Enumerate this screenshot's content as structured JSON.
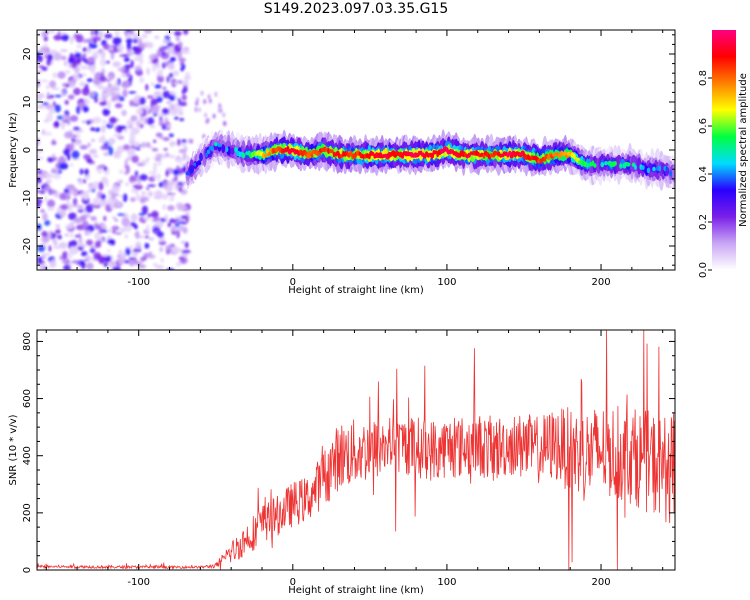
{
  "title": "S149.2023.097.03.35.G15",
  "chart_data": [
    {
      "type": "heatmap",
      "xlabel": "Height of straight line (km)",
      "ylabel": "Frequency (Hz)",
      "xlim": [
        -166,
        248
      ],
      "ylim": [
        -25,
        25
      ],
      "x_ticks": [
        -100,
        0,
        100,
        200
      ],
      "y_ticks": [
        -20,
        -10,
        0,
        10,
        20
      ],
      "colorbar": {
        "label": "Normalized spectral amplitude",
        "range": [
          0,
          1
        ],
        "ticks": [
          0.0,
          0.2,
          0.4,
          0.6,
          0.8
        ],
        "colors": [
          "#ffffff",
          "#c9a6f5",
          "#7a1fe8",
          "#2a00ff",
          "#00ddff",
          "#00ff40",
          "#ffff00",
          "#ff8000",
          "#ff0000",
          "#ff0080"
        ]
      },
      "noise_region_x": [
        -166,
        -68
      ],
      "ridge": {
        "x": [
          -68,
          -60,
          -50,
          -40,
          -30,
          -20,
          -10,
          0,
          10,
          20,
          30,
          40,
          50,
          60,
          70,
          80,
          90,
          100,
          110,
          120,
          130,
          140,
          150,
          160,
          170,
          180,
          190,
          200,
          210,
          220,
          230,
          240,
          248
        ],
        "freq": [
          -5,
          -2,
          1,
          0,
          -1,
          -1,
          0,
          0,
          -1,
          0,
          -1,
          -1,
          -1,
          -1,
          -1,
          -1,
          -1,
          0,
          -1,
          -1,
          -1,
          -1,
          -1,
          -2,
          -1,
          -1,
          -3,
          -3,
          -3,
          -3,
          -4,
          -4,
          -5
        ],
        "amplitude": [
          0.4,
          0.35,
          0.45,
          0.4,
          0.5,
          0.7,
          0.85,
          0.95,
          0.8,
          0.85,
          0.9,
          0.85,
          0.9,
          0.95,
          0.9,
          0.95,
          0.9,
          0.95,
          0.9,
          0.9,
          0.85,
          0.95,
          0.9,
          0.85,
          0.8,
          0.75,
          0.55,
          0.5,
          0.55,
          0.5,
          0.45,
          0.4,
          0.35
        ]
      }
    },
    {
      "type": "line",
      "xlabel": "Height of straight line (km)",
      "ylabel": "SNR (10 * v/v)",
      "xlim": [
        -166,
        248
      ],
      "ylim": [
        0,
        840
      ],
      "x_ticks": [
        -100,
        0,
        100,
        200
      ],
      "y_ticks": [
        0,
        200,
        400,
        600,
        800
      ],
      "series": [
        {
          "color": "#ee3333",
          "x": [
            -166,
            -100,
            -60,
            -50,
            -40,
            -30,
            -20,
            -10,
            0,
            10,
            20,
            30,
            40,
            50,
            60,
            70,
            80,
            90,
            100,
            110,
            120,
            130,
            140,
            150,
            160,
            170,
            180,
            190,
            200,
            210,
            220,
            230,
            240,
            248
          ],
          "y": [
            12,
            10,
            10,
            15,
            60,
            110,
            160,
            190,
            230,
            250,
            320,
            400,
            410,
            420,
            430,
            440,
            430,
            420,
            430,
            430,
            440,
            420,
            440,
            430,
            420,
            440,
            420,
            400,
            420,
            410,
            400,
            380,
            360,
            340
          ],
          "spread": [
            5,
            5,
            4,
            8,
            40,
            60,
            70,
            70,
            80,
            80,
            100,
            120,
            120,
            110,
            110,
            100,
            110,
            110,
            110,
            110,
            110,
            120,
            110,
            120,
            120,
            130,
            150,
            170,
            160,
            170,
            170,
            180,
            190,
            190
          ]
        }
      ]
    }
  ]
}
